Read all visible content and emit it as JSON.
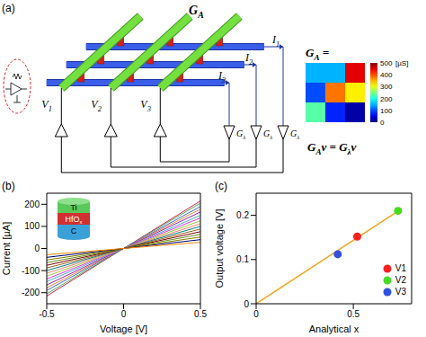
{
  "panel_labels": [
    "(a)",
    "(b)",
    "(c)"
  ],
  "diagram": {
    "title": {
      "main": "G",
      "sub": "A"
    },
    "inputs": [
      {
        "main": "V",
        "sub": "1"
      },
      {
        "main": "V",
        "sub": "2"
      },
      {
        "main": "V",
        "sub": "3"
      }
    ],
    "currents": [
      {
        "main": "I",
        "sub": "1"
      },
      {
        "main": "I",
        "sub": "2"
      },
      {
        "main": "I",
        "sub": "3"
      }
    ],
    "feedback": [
      {
        "main": "G",
        "sub": "λ"
      },
      {
        "main": "G",
        "sub": "λ"
      },
      {
        "main": "G",
        "sub": "λ"
      }
    ],
    "matrix_label": [
      {
        "main": "G",
        "sub": "A"
      },
      {
        "main": " ="
      }
    ],
    "equation": [
      {
        "main": "G",
        "sub": "A"
      },
      {
        "main": "v = G",
        "sub": "λ"
      },
      {
        "main": "v"
      }
    ]
  },
  "heatmap": {
    "cells": [
      [
        150,
        150,
        450
      ],
      [
        100,
        380,
        320
      ],
      [
        230,
        80,
        20
      ]
    ],
    "colorbar": {
      "range": [
        0,
        500
      ],
      "ticks": [
        0,
        100,
        200,
        300,
        400,
        500
      ],
      "unit": "[µS]"
    }
  },
  "chart_data": [
    {
      "type": "line",
      "x_label": "Voltage [V]",
      "y_label": "Current [µA]",
      "x": [
        -0.5,
        0.5
      ],
      "series": [
        {
          "color": "#e6194b",
          "values": [
            -215,
            215
          ]
        },
        {
          "color": "#3cb44b",
          "values": [
            -205,
            205
          ]
        },
        {
          "color": "#4363d8",
          "values": [
            -190,
            190
          ]
        },
        {
          "color": "#f58231",
          "values": [
            -178,
            178
          ]
        },
        {
          "color": "#911eb4",
          "values": [
            -165,
            165
          ]
        },
        {
          "color": "#46b0d0",
          "values": [
            -150,
            150
          ]
        },
        {
          "color": "#f032e6",
          "values": [
            -138,
            138
          ]
        },
        {
          "color": "#9acd32",
          "values": [
            -125,
            125
          ]
        },
        {
          "color": "#fa8072",
          "values": [
            -112,
            112
          ]
        },
        {
          "color": "#008080",
          "values": [
            -100,
            100
          ]
        },
        {
          "color": "#9a6324",
          "values": [
            -88,
            88
          ]
        },
        {
          "color": "#800000",
          "values": [
            -76,
            76
          ]
        },
        {
          "color": "#6b8e23",
          "values": [
            -64,
            64
          ]
        },
        {
          "color": "#808000",
          "values": [
            -52,
            52
          ]
        },
        {
          "color": "#000075",
          "values": [
            -40,
            40
          ]
        },
        {
          "color": "#ff8c00",
          "values": [
            -28,
            28
          ]
        }
      ],
      "xlim": [
        -0.5,
        0.5
      ],
      "xticks": [
        -0.5,
        0,
        0.5
      ],
      "ylim": [
        -250,
        250
      ],
      "yticks": [
        -200,
        -100,
        0,
        100,
        200
      ],
      "inset": {
        "layers": [
          {
            "main": "Ti"
          },
          {
            "main": "HfO",
            "sub": "x"
          },
          {
            "main": "C"
          }
        ]
      }
    },
    {
      "type": "scatter",
      "x_label": "Analytical x",
      "y_label": "Output voltage [V]",
      "series": [
        {
          "type": "line",
          "color": "#f5a623",
          "x": [
            0,
            0.75
          ],
          "values": [
            0,
            0.215
          ]
        },
        {
          "name": "V1",
          "color": "#ff2020",
          "x": [
            0.52
          ],
          "values": [
            0.152
          ]
        },
        {
          "name": "V2",
          "color": "#44dd22",
          "x": [
            0.73
          ],
          "values": [
            0.21
          ]
        },
        {
          "name": "V3",
          "color": "#3050e0",
          "x": [
            0.42
          ],
          "values": [
            0.112
          ]
        }
      ],
      "xlim": [
        0,
        0.8
      ],
      "xticks": [
        0,
        0.5
      ],
      "ylim": [
        0,
        0.25
      ],
      "yticks": [
        0,
        0.1,
        0.2
      ],
      "legend": "lower right"
    }
  ]
}
